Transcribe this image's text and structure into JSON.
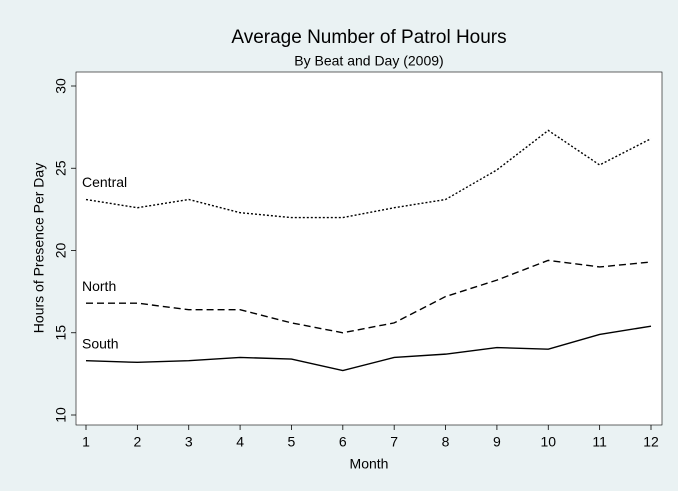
{
  "chart_data": {
    "type": "line",
    "title": "Average Number of Patrol Hours",
    "subtitle": "By Beat and Day (2009)",
    "x_label": "Month",
    "y_label": "Hours of Presence Per Day",
    "x": [
      1,
      2,
      3,
      4,
      5,
      6,
      7,
      8,
      9,
      10,
      11,
      12
    ],
    "xlim": [
      1,
      12
    ],
    "xticks": [
      1,
      2,
      3,
      4,
      5,
      6,
      7,
      8,
      9,
      10,
      11,
      12
    ],
    "ylim": [
      10,
      30
    ],
    "yticks": [
      10,
      15,
      20,
      25,
      30
    ],
    "series": [
      {
        "name": "Central",
        "color": "#000000",
        "dash": "dotted",
        "values": [
          23.1,
          22.6,
          23.1,
          22.3,
          22.0,
          22.0,
          22.6,
          23.1,
          24.9,
          27.3,
          25.2,
          26.8
        ]
      },
      {
        "name": "North",
        "color": "#000000",
        "dash": "dashed",
        "values": [
          16.8,
          16.8,
          16.4,
          16.4,
          15.6,
          15.0,
          15.6,
          17.2,
          18.2,
          19.4,
          19.0,
          19.3
        ]
      },
      {
        "name": "South",
        "color": "#000000",
        "dash": "solid",
        "values": [
          13.3,
          13.2,
          13.3,
          13.5,
          13.4,
          12.7,
          13.5,
          13.7,
          14.1,
          14.0,
          14.9,
          15.4
        ]
      }
    ]
  }
}
